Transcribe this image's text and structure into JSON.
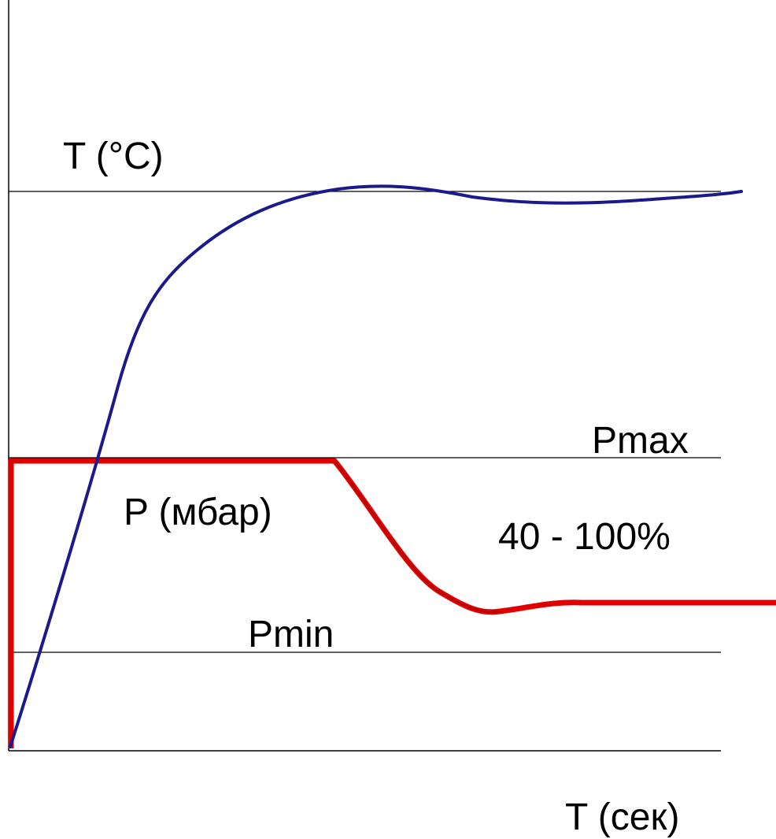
{
  "labels": {
    "temperature_axis": "T (°C)",
    "pmax": "Pmax",
    "pressure_axis": "P (мбар)",
    "percent_range": "40 - 100%",
    "pmin": "Pmin",
    "time_axis": "T (сек)"
  },
  "colors": {
    "temperature_curve": "#1a1a8c",
    "pressure_curve": "#e00000",
    "reference_lines": "#000000",
    "background": "#ffffff"
  }
}
